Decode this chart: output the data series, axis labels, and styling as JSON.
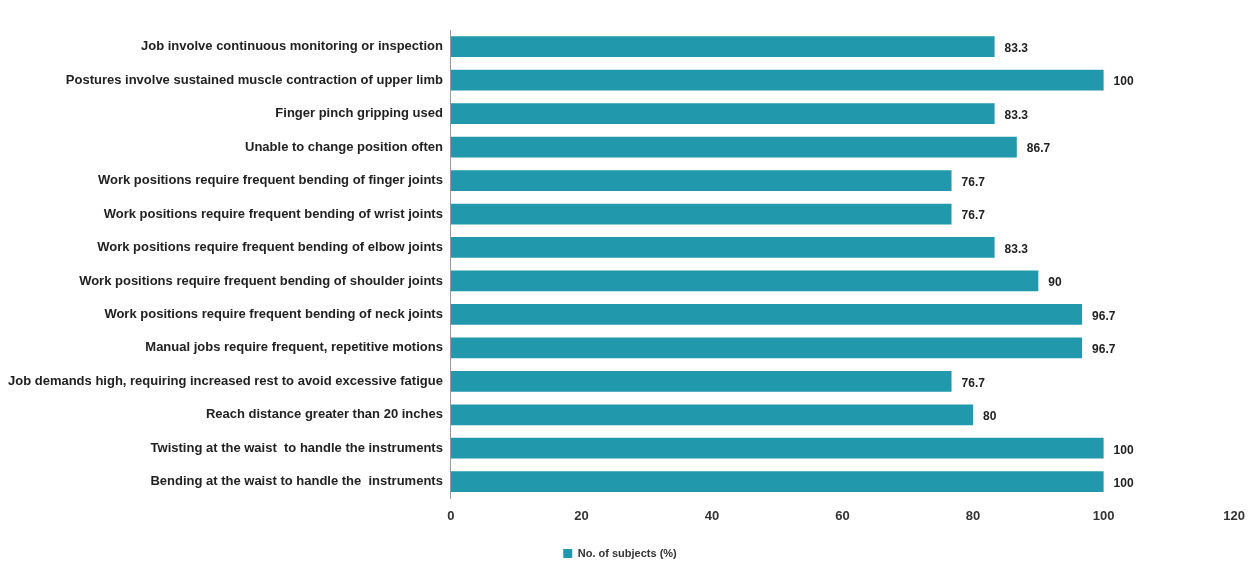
{
  "chart_data": {
    "type": "bar",
    "orientation": "horizontal",
    "categories": [
      "Job involve continuous monitoring or inspection",
      "Postures involve sustained muscle contraction of upper limb",
      "Finger pinch gripping used",
      "Unable to change position often",
      "Work positions require frequent bending of finger joints",
      "Work positions require frequent bending of wrist joints",
      "Work positions require frequent bending of elbow joints",
      "Work positions require frequent bending of shoulder joints",
      "Work positions require frequent bending of neck joints",
      "Manual jobs require frequent, repetitive motions",
      "Job demands high, requiring increased rest to avoid excessive fatigue",
      "Reach distance greater than 20 inches",
      "Twisting at the waist  to handle the instruments",
      "Bending at the waist to handle the  instruments"
    ],
    "series": [
      {
        "name": "No. of subjects (%)",
        "color": "#2298ad",
        "values": [
          83.3,
          100,
          83.3,
          86.7,
          76.7,
          76.7,
          83.3,
          90,
          96.7,
          96.7,
          76.7,
          80,
          100,
          100
        ]
      }
    ],
    "xlim": [
      0,
      120
    ],
    "xticks": [
      0,
      20,
      40,
      60,
      80,
      100,
      120
    ],
    "data_labels": true,
    "grid": false,
    "legend": "bottom"
  }
}
